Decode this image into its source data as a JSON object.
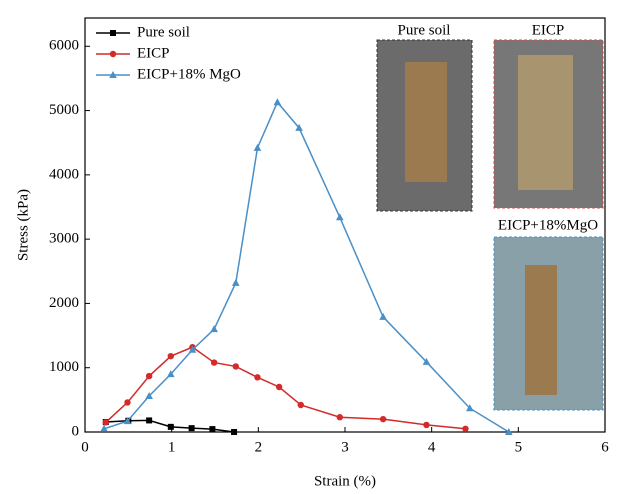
{
  "chart_data": {
    "type": "line",
    "xlabel": "Strain (%)",
    "ylabel": "Stress (kPa)",
    "xlim": [
      0,
      6
    ],
    "ylim": [
      0,
      6440
    ],
    "xticks": [
      0,
      1,
      2,
      3,
      4,
      5,
      6
    ],
    "yticks": [
      0,
      1000,
      2000,
      3000,
      4000,
      5000,
      6000
    ],
    "series": [
      {
        "name": "Pure soil",
        "color": "#000000",
        "marker": "square",
        "x": [
          0.24,
          0.5,
          0.74,
          0.99,
          1.23,
          1.47,
          1.72
        ],
        "values": [
          155,
          175,
          180,
          80,
          60,
          45,
          0
        ]
      },
      {
        "name": "EICP",
        "color": "#d42a2a",
        "marker": "circle",
        "x": [
          0.24,
          0.49,
          0.74,
          0.99,
          1.24,
          1.49,
          1.74,
          1.99,
          2.24,
          2.49,
          2.94,
          3.44,
          3.94,
          4.39
        ],
        "values": [
          150,
          460,
          870,
          1180,
          1320,
          1080,
          1020,
          850,
          700,
          420,
          230,
          200,
          110,
          50
        ]
      },
      {
        "name": "EICP+18% MgO",
        "color": "#4a8fc6",
        "marker": "triangle",
        "x": [
          0.22,
          0.49,
          0.74,
          0.99,
          1.24,
          1.49,
          1.74,
          1.99,
          2.22,
          2.47,
          2.94,
          3.44,
          3.94,
          4.44,
          4.89
        ],
        "values": [
          50,
          170,
          560,
          900,
          1280,
          1600,
          2320,
          4420,
          5130,
          4730,
          3340,
          1790,
          1090,
          370,
          0
        ]
      }
    ],
    "insets": [
      {
        "label": "Pure soil"
      },
      {
        "label": "EICP"
      },
      {
        "label": "EICP+18%MgO"
      }
    ]
  }
}
